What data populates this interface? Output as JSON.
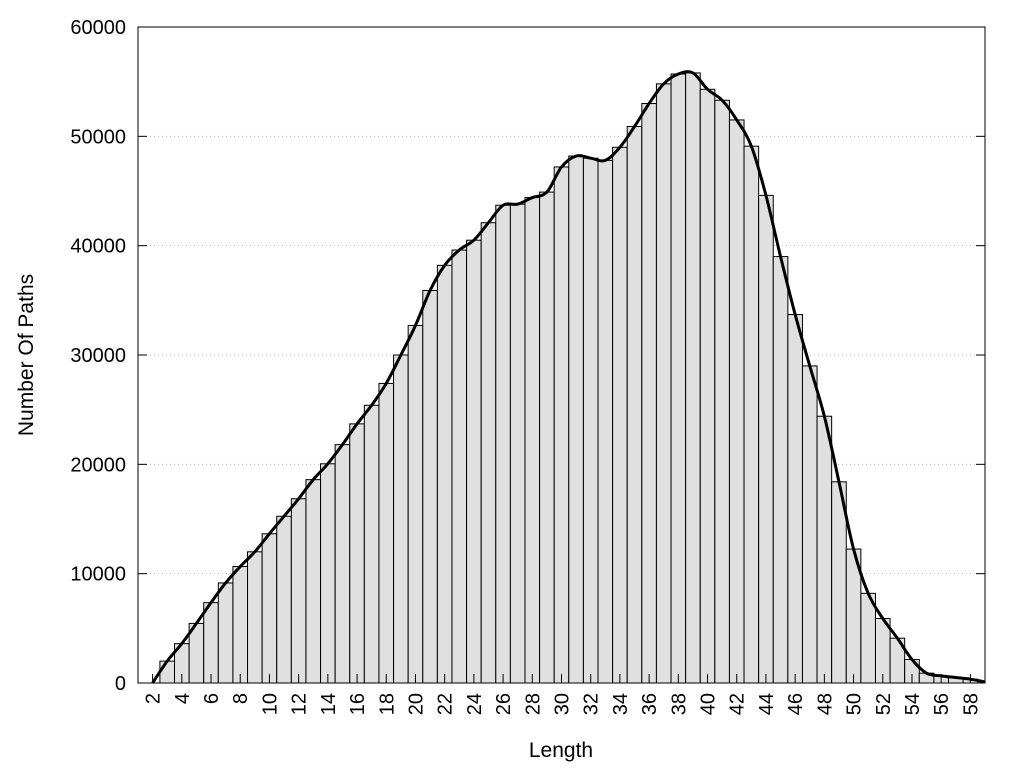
{
  "chart_data": {
    "type": "bar",
    "title": "",
    "xlabel": "Length",
    "ylabel": "Number Of Paths",
    "xlim": [
      1,
      59
    ],
    "ylim": [
      0,
      60000
    ],
    "x_ticks": [
      "2",
      "4",
      "6",
      "8",
      "10",
      "12",
      "14",
      "16",
      "18",
      "20",
      "22",
      "24",
      "26",
      "28",
      "30",
      "32",
      "34",
      "36",
      "38",
      "40",
      "42",
      "44",
      "46",
      "48",
      "50",
      "52",
      "54",
      "56",
      "58"
    ],
    "y_ticks": [
      "0",
      "10000",
      "20000",
      "30000",
      "40000",
      "50000",
      "60000"
    ],
    "grid": "horizontal dotted",
    "legend": "none",
    "bar_color": "#e0e0e0",
    "line_color": "#000000",
    "categories": [
      3,
      4,
      5,
      6,
      7,
      8,
      9,
      10,
      11,
      12,
      13,
      14,
      15,
      16,
      17,
      18,
      19,
      20,
      21,
      22,
      23,
      24,
      25,
      26,
      27,
      28,
      29,
      30,
      31,
      32,
      33,
      34,
      35,
      36,
      37,
      38,
      39,
      40,
      41,
      42,
      43,
      44,
      45,
      46,
      47,
      48,
      49,
      50,
      51,
      52,
      53,
      54,
      55,
      56,
      57,
      58
    ],
    "values": [
      2000,
      3600,
      5450,
      7350,
      9150,
      10650,
      12000,
      13650,
      15250,
      16850,
      18600,
      20050,
      21800,
      23700,
      25400,
      27400,
      30000,
      32700,
      35900,
      38200,
      39600,
      40500,
      42100,
      43700,
      43800,
      44400,
      44900,
      47200,
      48200,
      48000,
      47800,
      49000,
      50900,
      53000,
      54800,
      55700,
      55800,
      54300,
      53300,
      51500,
      49100,
      44600,
      39000,
      33700,
      29000,
      24400,
      18400,
      12250,
      8200,
      5900,
      4100,
      2150,
      900,
      650,
      500,
      350
    ],
    "smooth_line": {
      "x": [
        2,
        3,
        4,
        5,
        6,
        7,
        8,
        9,
        10,
        11,
        12,
        13,
        14,
        15,
        16,
        17,
        18,
        19,
        20,
        21,
        22,
        23,
        24,
        25,
        26,
        27,
        28,
        29,
        30,
        31,
        32,
        33,
        34,
        35,
        36,
        37,
        38,
        39,
        40,
        41,
        42,
        43,
        44,
        45,
        46,
        47,
        48,
        49,
        50,
        51,
        52,
        53,
        54,
        55,
        56,
        57,
        58,
        59
      ],
      "y": [
        0,
        2000,
        3600,
        5450,
        7350,
        9150,
        10650,
        12000,
        13650,
        15250,
        16850,
        18600,
        20050,
        21800,
        23700,
        25400,
        27400,
        30000,
        32700,
        35900,
        38200,
        39600,
        40500,
        42100,
        43700,
        43800,
        44400,
        44900,
        47200,
        48200,
        48000,
        47800,
        49000,
        50900,
        53000,
        54800,
        55700,
        55800,
        54300,
        53300,
        51500,
        49100,
        44600,
        39000,
        33700,
        29000,
        24400,
        18400,
        12250,
        8200,
        5900,
        4100,
        2150,
        900,
        650,
        500,
        350,
        100
      ]
    }
  }
}
